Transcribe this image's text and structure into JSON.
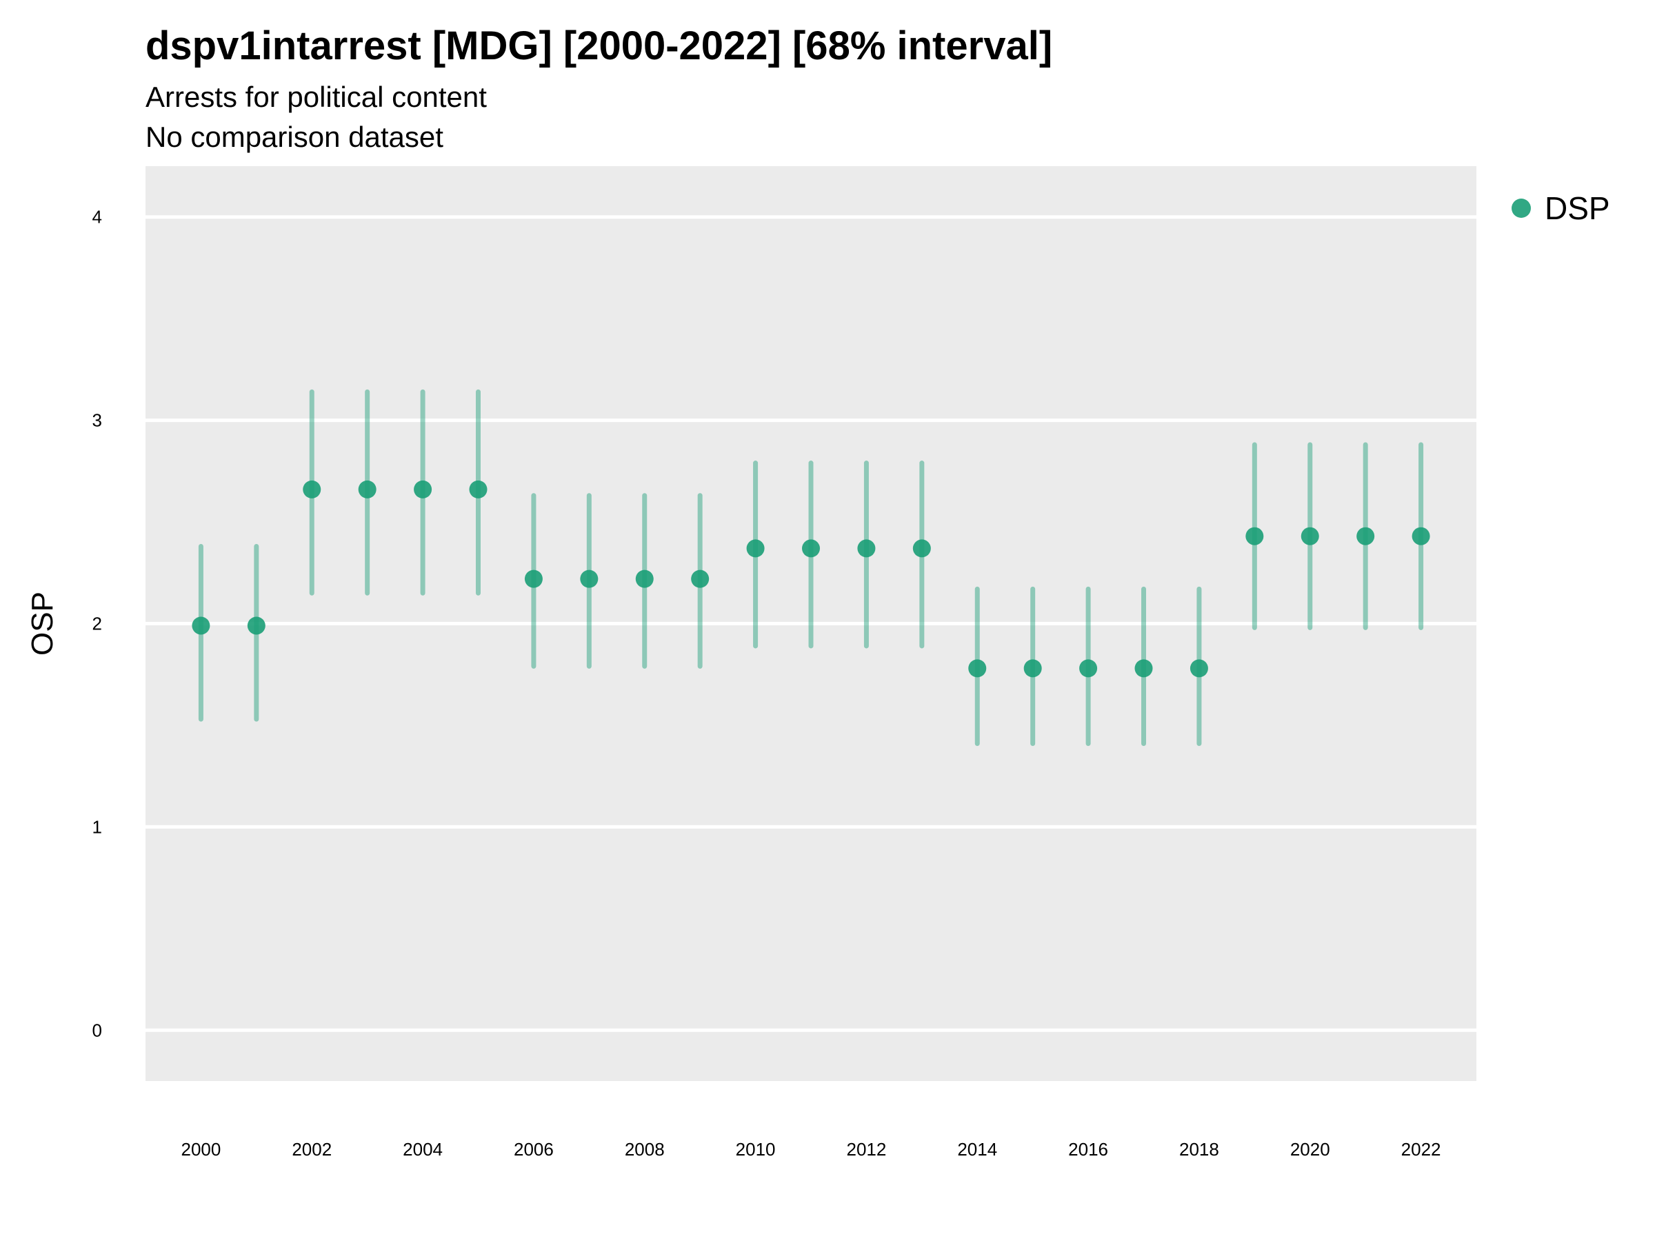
{
  "chart_data": {
    "type": "scatter",
    "title": "dspv1intarrest [MDG] [2000-2022] [68% interval]",
    "subtitle": "Arrests for political content",
    "subtitle2": "No comparison dataset",
    "xlabel": "",
    "ylabel": "OSP",
    "xlim": [
      1999,
      2023
    ],
    "ylim": [
      -0.25,
      4.25
    ],
    "yticks": [
      0,
      1,
      2,
      3,
      4
    ],
    "xticks": [
      2000,
      2002,
      2004,
      2006,
      2008,
      2010,
      2012,
      2014,
      2016,
      2018,
      2020,
      2022
    ],
    "grid": true,
    "legend_position": "right",
    "colors": {
      "panel": "#ebebeb",
      "grid": "#ffffff",
      "point": "#1b9e77"
    },
    "series": [
      {
        "name": "DSP",
        "points": [
          {
            "x": 2000,
            "y": 1.99,
            "lo": 1.53,
            "hi": 2.38
          },
          {
            "x": 2001,
            "y": 1.99,
            "lo": 1.53,
            "hi": 2.38
          },
          {
            "x": 2002,
            "y": 2.66,
            "lo": 2.15,
            "hi": 3.14
          },
          {
            "x": 2003,
            "y": 2.66,
            "lo": 2.15,
            "hi": 3.14
          },
          {
            "x": 2004,
            "y": 2.66,
            "lo": 2.15,
            "hi": 3.14
          },
          {
            "x": 2005,
            "y": 2.66,
            "lo": 2.15,
            "hi": 3.14
          },
          {
            "x": 2006,
            "y": 2.22,
            "lo": 1.79,
            "hi": 2.63
          },
          {
            "x": 2007,
            "y": 2.22,
            "lo": 1.79,
            "hi": 2.63
          },
          {
            "x": 2008,
            "y": 2.22,
            "lo": 1.79,
            "hi": 2.63
          },
          {
            "x": 2009,
            "y": 2.22,
            "lo": 1.79,
            "hi": 2.63
          },
          {
            "x": 2010,
            "y": 2.37,
            "lo": 1.89,
            "hi": 2.79
          },
          {
            "x": 2011,
            "y": 2.37,
            "lo": 1.89,
            "hi": 2.79
          },
          {
            "x": 2012,
            "y": 2.37,
            "lo": 1.89,
            "hi": 2.79
          },
          {
            "x": 2013,
            "y": 2.37,
            "lo": 1.89,
            "hi": 2.79
          },
          {
            "x": 2014,
            "y": 1.78,
            "lo": 1.41,
            "hi": 2.17
          },
          {
            "x": 2015,
            "y": 1.78,
            "lo": 1.41,
            "hi": 2.17
          },
          {
            "x": 2016,
            "y": 1.78,
            "lo": 1.41,
            "hi": 2.17
          },
          {
            "x": 2017,
            "y": 1.78,
            "lo": 1.41,
            "hi": 2.17
          },
          {
            "x": 2018,
            "y": 1.78,
            "lo": 1.41,
            "hi": 2.17
          },
          {
            "x": 2019,
            "y": 2.43,
            "lo": 1.98,
            "hi": 2.88
          },
          {
            "x": 2020,
            "y": 2.43,
            "lo": 1.98,
            "hi": 2.88
          },
          {
            "x": 2021,
            "y": 2.43,
            "lo": 1.98,
            "hi": 2.88
          },
          {
            "x": 2022,
            "y": 2.43,
            "lo": 1.98,
            "hi": 2.88
          }
        ]
      }
    ]
  }
}
